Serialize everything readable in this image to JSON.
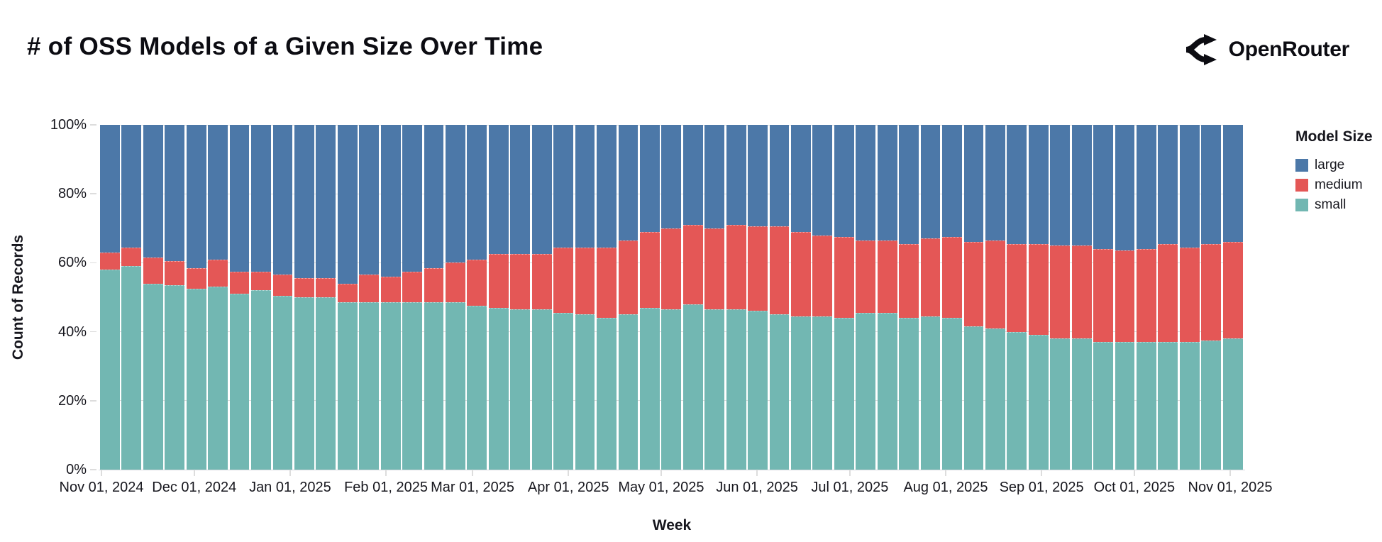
{
  "header": {
    "title": "# of OSS Models of a Given Size Over Time",
    "brand": "OpenRouter"
  },
  "chart_data": {
    "type": "bar",
    "stacked": true,
    "normalized_percent": true,
    "title": "# of OSS Models of a Given Size Over Time",
    "xlabel": "Week",
    "ylabel": "Count of Records",
    "ylim": [
      0,
      100
    ],
    "grid": true,
    "y_ticks": [
      0,
      20,
      40,
      60,
      80,
      100
    ],
    "y_tick_labels": [
      "0%",
      "20%",
      "40%",
      "60%",
      "80%",
      "100%"
    ],
    "x_tick_labels": [
      "Nov 01, 2024",
      "Dec 01, 2024",
      "Jan 01, 2025",
      "Feb 01, 2025",
      "Mar 01, 2025",
      "Apr 01, 2025",
      "May 01, 2025",
      "Jun 01, 2025",
      "Jul 01, 2025",
      "Aug 01, 2025",
      "Sep 01, 2025",
      "Oct 01, 2025",
      "Nov 01, 2025"
    ],
    "legend": {
      "title": "Model Size",
      "position": "right",
      "entries": [
        {
          "label": "large",
          "color": "#4c78a8"
        },
        {
          "label": "medium",
          "color": "#e45756"
        },
        {
          "label": "small",
          "color": "#72b7b2"
        }
      ]
    },
    "categories": [
      "2024-11-03",
      "2024-11-10",
      "2024-11-17",
      "2024-11-24",
      "2024-12-01",
      "2024-12-08",
      "2024-12-15",
      "2024-12-22",
      "2024-12-29",
      "2025-01-05",
      "2025-01-12",
      "2025-01-19",
      "2025-01-26",
      "2025-02-02",
      "2025-02-09",
      "2025-02-16",
      "2025-02-23",
      "2025-03-02",
      "2025-03-09",
      "2025-03-16",
      "2025-03-23",
      "2025-03-30",
      "2025-04-06",
      "2025-04-13",
      "2025-04-20",
      "2025-04-27",
      "2025-05-04",
      "2025-05-11",
      "2025-05-18",
      "2025-05-25",
      "2025-06-01",
      "2025-06-08",
      "2025-06-15",
      "2025-06-22",
      "2025-06-29",
      "2025-07-06",
      "2025-07-13",
      "2025-07-20",
      "2025-07-27",
      "2025-08-03",
      "2025-08-10",
      "2025-08-17",
      "2025-08-24",
      "2025-08-31",
      "2025-09-07",
      "2025-09-14",
      "2025-09-21",
      "2025-09-28",
      "2025-10-05",
      "2025-10-12",
      "2025-10-19",
      "2025-10-26",
      "2025-11-02"
    ],
    "series": [
      {
        "name": "large",
        "color": "#4c78a8",
        "values": [
          37,
          35.5,
          38.5,
          39.5,
          41.5,
          39,
          42.5,
          42.5,
          43.5,
          44.5,
          44.5,
          46,
          43.5,
          44,
          42.5,
          41.5,
          40,
          39,
          37.5,
          37.5,
          37.5,
          35.5,
          35.5,
          35.5,
          33.5,
          31,
          30,
          29,
          30,
          29,
          29.5,
          29.5,
          31,
          32,
          32.5,
          33.5,
          33.5,
          34.5,
          33,
          32.5,
          34,
          33.5,
          34.5,
          34.5,
          35,
          35,
          36,
          36.5,
          36,
          34.5,
          35.5,
          34.5,
          34
        ]
      },
      {
        "name": "medium",
        "color": "#e45756",
        "values": [
          5,
          5.5,
          7.5,
          7,
          6,
          8,
          6.5,
          5.5,
          6,
          5.5,
          5.5,
          5.5,
          8,
          7.5,
          9,
          10,
          11.5,
          13.5,
          15.5,
          16,
          16,
          19,
          19.5,
          20.5,
          21.5,
          22,
          23.5,
          23,
          23.5,
          24.5,
          24.5,
          25.5,
          24.5,
          23.5,
          23.5,
          21,
          21,
          21.5,
          22.5,
          23.5,
          24.5,
          25.5,
          25.5,
          26.5,
          27,
          27,
          27,
          26.5,
          27,
          28.5,
          27.5,
          28,
          28
        ]
      },
      {
        "name": "small",
        "color": "#72b7b2",
        "values": [
          58,
          59,
          54,
          53.5,
          52.5,
          53,
          51,
          52,
          50.5,
          50,
          50,
          48.5,
          48.5,
          48.5,
          48.5,
          48.5,
          48.5,
          47.5,
          47,
          46.5,
          46.5,
          45.5,
          45,
          44,
          45,
          47,
          46.5,
          48,
          46.5,
          46.5,
          46,
          45,
          44.5,
          44.5,
          44,
          45.5,
          45.5,
          44,
          44.5,
          44,
          41.5,
          41,
          40,
          39,
          38,
          38,
          37,
          37,
          37,
          37,
          37,
          37.5,
          38
        ]
      }
    ]
  }
}
